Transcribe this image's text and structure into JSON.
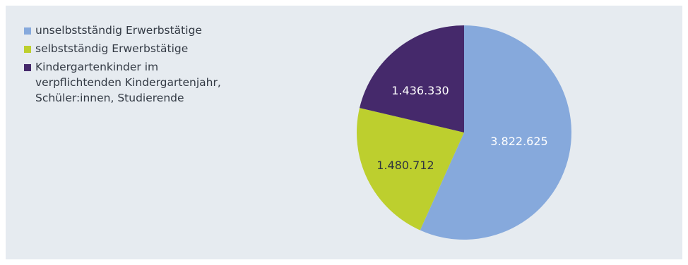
{
  "chart_data": {
    "type": "pie",
    "title": "",
    "legend_position": "top-left",
    "start_angle_deg": 0,
    "direction": "clockwise",
    "slices": [
      {
        "label": "unselbstständig Erwerbstätige",
        "value": 3822625,
        "value_label": "3.822.625",
        "color": "#86a9dc",
        "label_color": "#ffffff"
      },
      {
        "label": "selbstständig Erwerbstätige",
        "value": 1480712,
        "value_label": "1.480.712",
        "color": "#bdcf2e",
        "label_color": "#2f3540"
      },
      {
        "label": "Kindergartenkinder im verpflichtenden Kindergartenjahr, Schüler:innen, Studierende",
        "value": 1436330,
        "value_label": "1.436.330",
        "color": "#45296b",
        "label_color": "#ffffff"
      }
    ]
  }
}
